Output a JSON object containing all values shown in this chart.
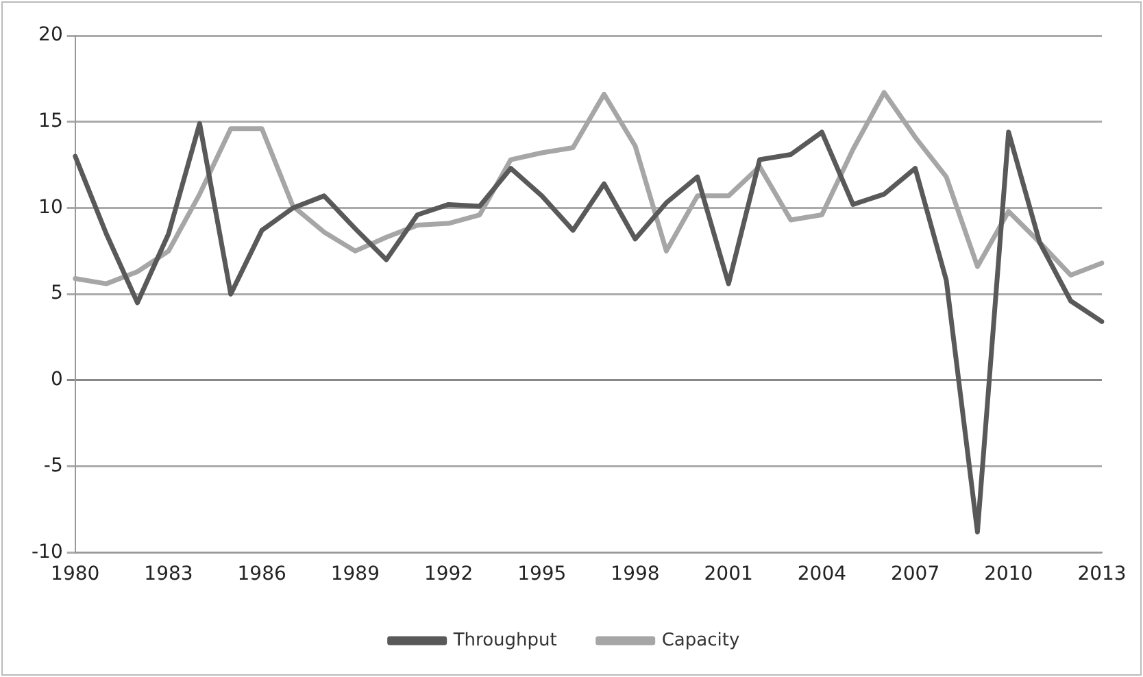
{
  "chart_data": {
    "type": "line",
    "categories": [
      "1980",
      null,
      null,
      "1983",
      null,
      null,
      "1986",
      null,
      null,
      "1989",
      null,
      null,
      "1992",
      null,
      null,
      "1995",
      null,
      null,
      "1998",
      null,
      null,
      "2001",
      null,
      null,
      "2004",
      null,
      null,
      "2007",
      null,
      null,
      "2010",
      null,
      null,
      "2013"
    ],
    "series": [
      {
        "name": "Throughput",
        "color": "#595959",
        "values": [
          13.0,
          8.5,
          4.5,
          8.5,
          14.9,
          5.0,
          8.7,
          10.0,
          10.7,
          8.8,
          7.0,
          9.6,
          10.2,
          10.1,
          12.3,
          10.7,
          8.7,
          11.4,
          8.2,
          10.3,
          11.8,
          5.6,
          12.8,
          13.1,
          14.4,
          10.2,
          10.8,
          12.3,
          5.8,
          -8.8,
          14.4,
          8.0,
          4.6,
          3.4
        ]
      },
      {
        "name": "Capacity",
        "color": "#a6a6a6",
        "values": [
          5.9,
          5.6,
          6.3,
          7.5,
          10.8,
          14.6,
          14.6,
          10.1,
          8.6,
          7.5,
          8.3,
          9.0,
          9.1,
          9.6,
          12.8,
          13.2,
          13.5,
          16.6,
          13.6,
          7.5,
          10.7,
          10.7,
          12.4,
          9.3,
          9.6,
          13.4,
          16.7,
          14.1,
          11.8,
          6.6,
          9.8,
          8.0,
          6.1,
          6.8
        ]
      }
    ],
    "ylim": [
      -10,
      20
    ],
    "yticks": [
      -10,
      -5,
      0,
      5,
      10,
      15,
      20
    ],
    "grid": "y",
    "legend": "bottom",
    "marker": "none",
    "line_style": "solid"
  }
}
